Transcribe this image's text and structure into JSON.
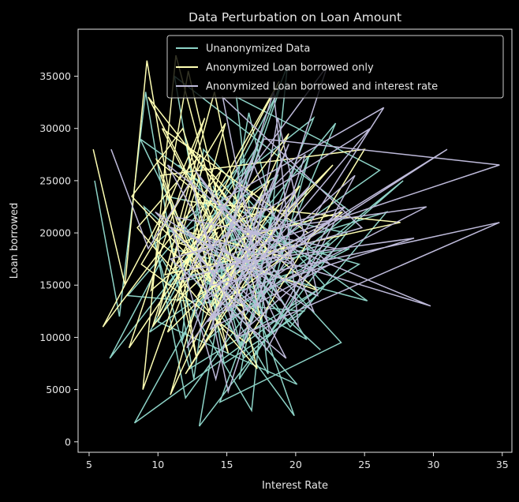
{
  "chart_data": {
    "type": "line",
    "title": "Data Perturbation on  Loan Amount",
    "xlabel": "Interest Rate",
    "ylabel": "Loan borrowed",
    "xlim": [
      4.2,
      35.7
    ],
    "ylim": [
      -1000,
      39500
    ],
    "xticks": [
      5,
      10,
      15,
      20,
      25,
      30,
      35
    ],
    "yticks": [
      0,
      5000,
      10000,
      15000,
      20000,
      25000,
      30000,
      35000
    ],
    "grid": false,
    "background": "#000000",
    "legend": {
      "position": "top-right"
    },
    "series": [
      {
        "name": "Unanonymized Data",
        "color": "#8dd3c7",
        "points": [
          [
            5.4,
            25000
          ],
          [
            7.2,
            12000
          ],
          [
            9.1,
            33500
          ],
          [
            12.6,
            6000
          ],
          [
            14.2,
            21000
          ],
          [
            6.5,
            8000
          ],
          [
            10.3,
            17500
          ],
          [
            16.8,
            3000
          ],
          [
            19.4,
            36000
          ],
          [
            11.7,
            9500
          ],
          [
            13.3,
            28000
          ],
          [
            22.1,
            15000
          ],
          [
            8.3,
            1800
          ],
          [
            17.6,
            24000
          ],
          [
            15.1,
            11000
          ],
          [
            21.3,
            31000
          ],
          [
            9.8,
            19000
          ],
          [
            12.0,
            4200
          ],
          [
            18.5,
            16000
          ],
          [
            24.0,
            22000
          ],
          [
            11.2,
            35000
          ],
          [
            14.8,
            7500
          ],
          [
            20.6,
            12500
          ],
          [
            7.8,
            14000
          ],
          [
            16.3,
            27000
          ],
          [
            13.0,
            1500
          ],
          [
            23.7,
            20000
          ],
          [
            10.6,
            23500
          ],
          [
            18.0,
            6500
          ],
          [
            15.7,
            33000
          ],
          [
            26.1,
            26000
          ],
          [
            9.4,
            10500
          ],
          [
            12.9,
            19500
          ],
          [
            21.8,
            8800
          ],
          [
            17.1,
            14500
          ],
          [
            14.0,
            24500
          ],
          [
            19.9,
            2500
          ],
          [
            11.0,
            18500
          ],
          [
            25.2,
            13500
          ],
          [
            8.7,
            29000
          ],
          [
            16.0,
            9000
          ],
          [
            22.9,
            30500
          ],
          [
            13.6,
            15500
          ],
          [
            20.1,
            5500
          ],
          [
            10.0,
            11500
          ],
          [
            18.9,
            34000
          ],
          [
            15.4,
            20500
          ],
          [
            24.6,
            17000
          ],
          [
            12.3,
            7000
          ],
          [
            9.0,
            22500
          ],
          [
            17.8,
            12000
          ],
          [
            21.0,
            27500
          ],
          [
            14.5,
            3800
          ],
          [
            23.3,
            9500
          ],
          [
            11.5,
            26500
          ],
          [
            19.0,
            18000
          ],
          [
            16.6,
            31500
          ],
          [
            13.8,
            10000
          ],
          [
            27.8,
            25000
          ],
          [
            20.4,
            16500
          ],
          [
            12.8,
            13000
          ],
          [
            18.2,
            21500
          ],
          [
            15.9,
            6000
          ],
          [
            22.4,
            19000
          ],
          [
            10.8,
            15000
          ],
          [
            17.3,
            28500
          ],
          [
            14.3,
            17000
          ],
          [
            26.6,
            22000
          ],
          [
            19.6,
            11000
          ],
          [
            13.2,
            24000
          ],
          [
            16.2,
            8000
          ],
          [
            21.5,
            14000
          ],
          [
            11.9,
            20000
          ],
          [
            18.7,
            25500
          ],
          [
            15.0,
            12500
          ],
          [
            23.9,
            18500
          ],
          [
            12.5,
            16000
          ],
          [
            20.8,
            9800
          ],
          [
            14.9,
            22000
          ],
          [
            17.5,
            15500
          ]
        ]
      },
      {
        "name": "Anonymized Loan borrowed only",
        "color": "#ffffb3",
        "points": [
          [
            5.3,
            28000
          ],
          [
            7.6,
            15000
          ],
          [
            9.2,
            36500
          ],
          [
            12.8,
            8000
          ],
          [
            10.4,
            22000
          ],
          [
            6.0,
            11000
          ],
          [
            14.6,
            26000
          ],
          [
            8.9,
            5000
          ],
          [
            11.3,
            37000
          ],
          [
            16.1,
            13000
          ],
          [
            9.7,
            19500
          ],
          [
            13.4,
            31000
          ],
          [
            7.9,
            9000
          ],
          [
            15.6,
            24000
          ],
          [
            11.1,
            16500
          ],
          [
            18.8,
            34500
          ],
          [
            10.0,
            12000
          ],
          [
            13.1,
            27500
          ],
          [
            8.5,
            20500
          ],
          [
            17.2,
            7000
          ],
          [
            12.2,
            35500
          ],
          [
            9.5,
            14500
          ],
          [
            14.3,
            20000
          ],
          [
            10.9,
            4500
          ],
          [
            19.5,
            29500
          ],
          [
            12.6,
            17500
          ],
          [
            16.7,
            11500
          ],
          [
            8.1,
            23500
          ],
          [
            11.8,
            30000
          ],
          [
            15.3,
            15500
          ],
          [
            22.7,
            26500
          ],
          [
            10.7,
            10500
          ],
          [
            13.9,
            21000
          ],
          [
            9.3,
            33000
          ],
          [
            17.9,
            18500
          ],
          [
            12.0,
            6500
          ],
          [
            20.3,
            24500
          ],
          [
            11.4,
            13500
          ],
          [
            14.9,
            30500
          ],
          [
            8.8,
            17000
          ],
          [
            16.4,
            9500
          ],
          [
            25.0,
            28000
          ],
          [
            10.2,
            25500
          ],
          [
            13.7,
            12500
          ],
          [
            18.4,
            22500
          ],
          [
            11.6,
            19000
          ],
          [
            21.6,
            14500
          ],
          [
            9.9,
            27000
          ],
          [
            15.1,
            8500
          ],
          [
            12.4,
            23000
          ],
          [
            27.6,
            21000
          ],
          [
            10.5,
            16000
          ],
          [
            14.1,
            33500
          ],
          [
            17.4,
            12000
          ],
          [
            11.0,
            20500
          ],
          [
            19.8,
            17500
          ],
          [
            13.3,
            26500
          ],
          [
            9.6,
            11000
          ],
          [
            16.9,
            24000
          ],
          [
            12.9,
            14000
          ],
          [
            20.9,
            20000
          ],
          [
            10.3,
            30000
          ],
          [
            15.5,
            16500
          ],
          [
            13.0,
            9000
          ],
          [
            18.1,
            25000
          ],
          [
            11.7,
            18000
          ],
          [
            23.4,
            22000
          ],
          [
            14.4,
            13000
          ],
          [
            12.1,
            28500
          ],
          [
            17.0,
            19500
          ]
        ]
      },
      {
        "name": "Anonymized Loan borrowed and interest rate",
        "color": "#bebada",
        "points": [
          [
            6.6,
            28000
          ],
          [
            9.3,
            18500
          ],
          [
            12.4,
            25000
          ],
          [
            15.8,
            9500
          ],
          [
            18.7,
            31000
          ],
          [
            21.6,
            14000
          ],
          [
            11.0,
            20500
          ],
          [
            14.2,
            6000
          ],
          [
            17.5,
            23500
          ],
          [
            25.4,
            30000
          ],
          [
            13.6,
            11500
          ],
          [
            19.8,
            17000
          ],
          [
            10.7,
            26500
          ],
          [
            16.5,
            12500
          ],
          [
            22.3,
            36000
          ],
          [
            12.8,
            19000
          ],
          [
            15.1,
            4800
          ],
          [
            20.7,
            27500
          ],
          [
            11.6,
            15500
          ],
          [
            24.8,
            20500
          ],
          [
            14.7,
            33000
          ],
          [
            18.1,
            10500
          ],
          [
            9.8,
            22000
          ],
          [
            16.9,
            16000
          ],
          [
            31.0,
            28000
          ],
          [
            13.3,
            13500
          ],
          [
            21.0,
            24500
          ],
          [
            12.1,
            9000
          ],
          [
            17.7,
            29000
          ],
          [
            34.8,
            26500
          ],
          [
            15.4,
            18000
          ],
          [
            19.3,
            8000
          ],
          [
            10.9,
            17500
          ],
          [
            23.6,
            22500
          ],
          [
            14.0,
            12000
          ],
          [
            29.5,
            22500
          ],
          [
            16.2,
            20000
          ],
          [
            12.7,
            26000
          ],
          [
            20.2,
            11000
          ],
          [
            18.4,
            33500
          ],
          [
            13.9,
            15000
          ],
          [
            34.8,
            21000
          ],
          [
            15.7,
            10000
          ],
          [
            22.9,
            18500
          ],
          [
            11.3,
            21500
          ],
          [
            17.2,
            13000
          ],
          [
            26.4,
            32000
          ],
          [
            14.5,
            23000
          ],
          [
            19.0,
            15500
          ],
          [
            28.6,
            19500
          ],
          [
            12.3,
            16500
          ],
          [
            16.8,
            27000
          ],
          [
            21.3,
            12500
          ],
          [
            13.5,
            19500
          ],
          [
            29.8,
            13000
          ],
          [
            15.2,
            21000
          ],
          [
            18.6,
            11500
          ],
          [
            24.3,
            25500
          ],
          [
            14.8,
            14500
          ],
          [
            20.0,
            24000
          ],
          [
            12.9,
            18000
          ],
          [
            17.9,
            8800
          ],
          [
            23.0,
            21500
          ],
          [
            16.0,
            16500
          ],
          [
            19.5,
            28500
          ],
          [
            13.8,
            10800
          ],
          [
            22.5,
            17000
          ],
          [
            15.9,
            24500
          ],
          [
            18.9,
            13500
          ],
          [
            14.4,
            19000
          ]
        ]
      }
    ]
  }
}
